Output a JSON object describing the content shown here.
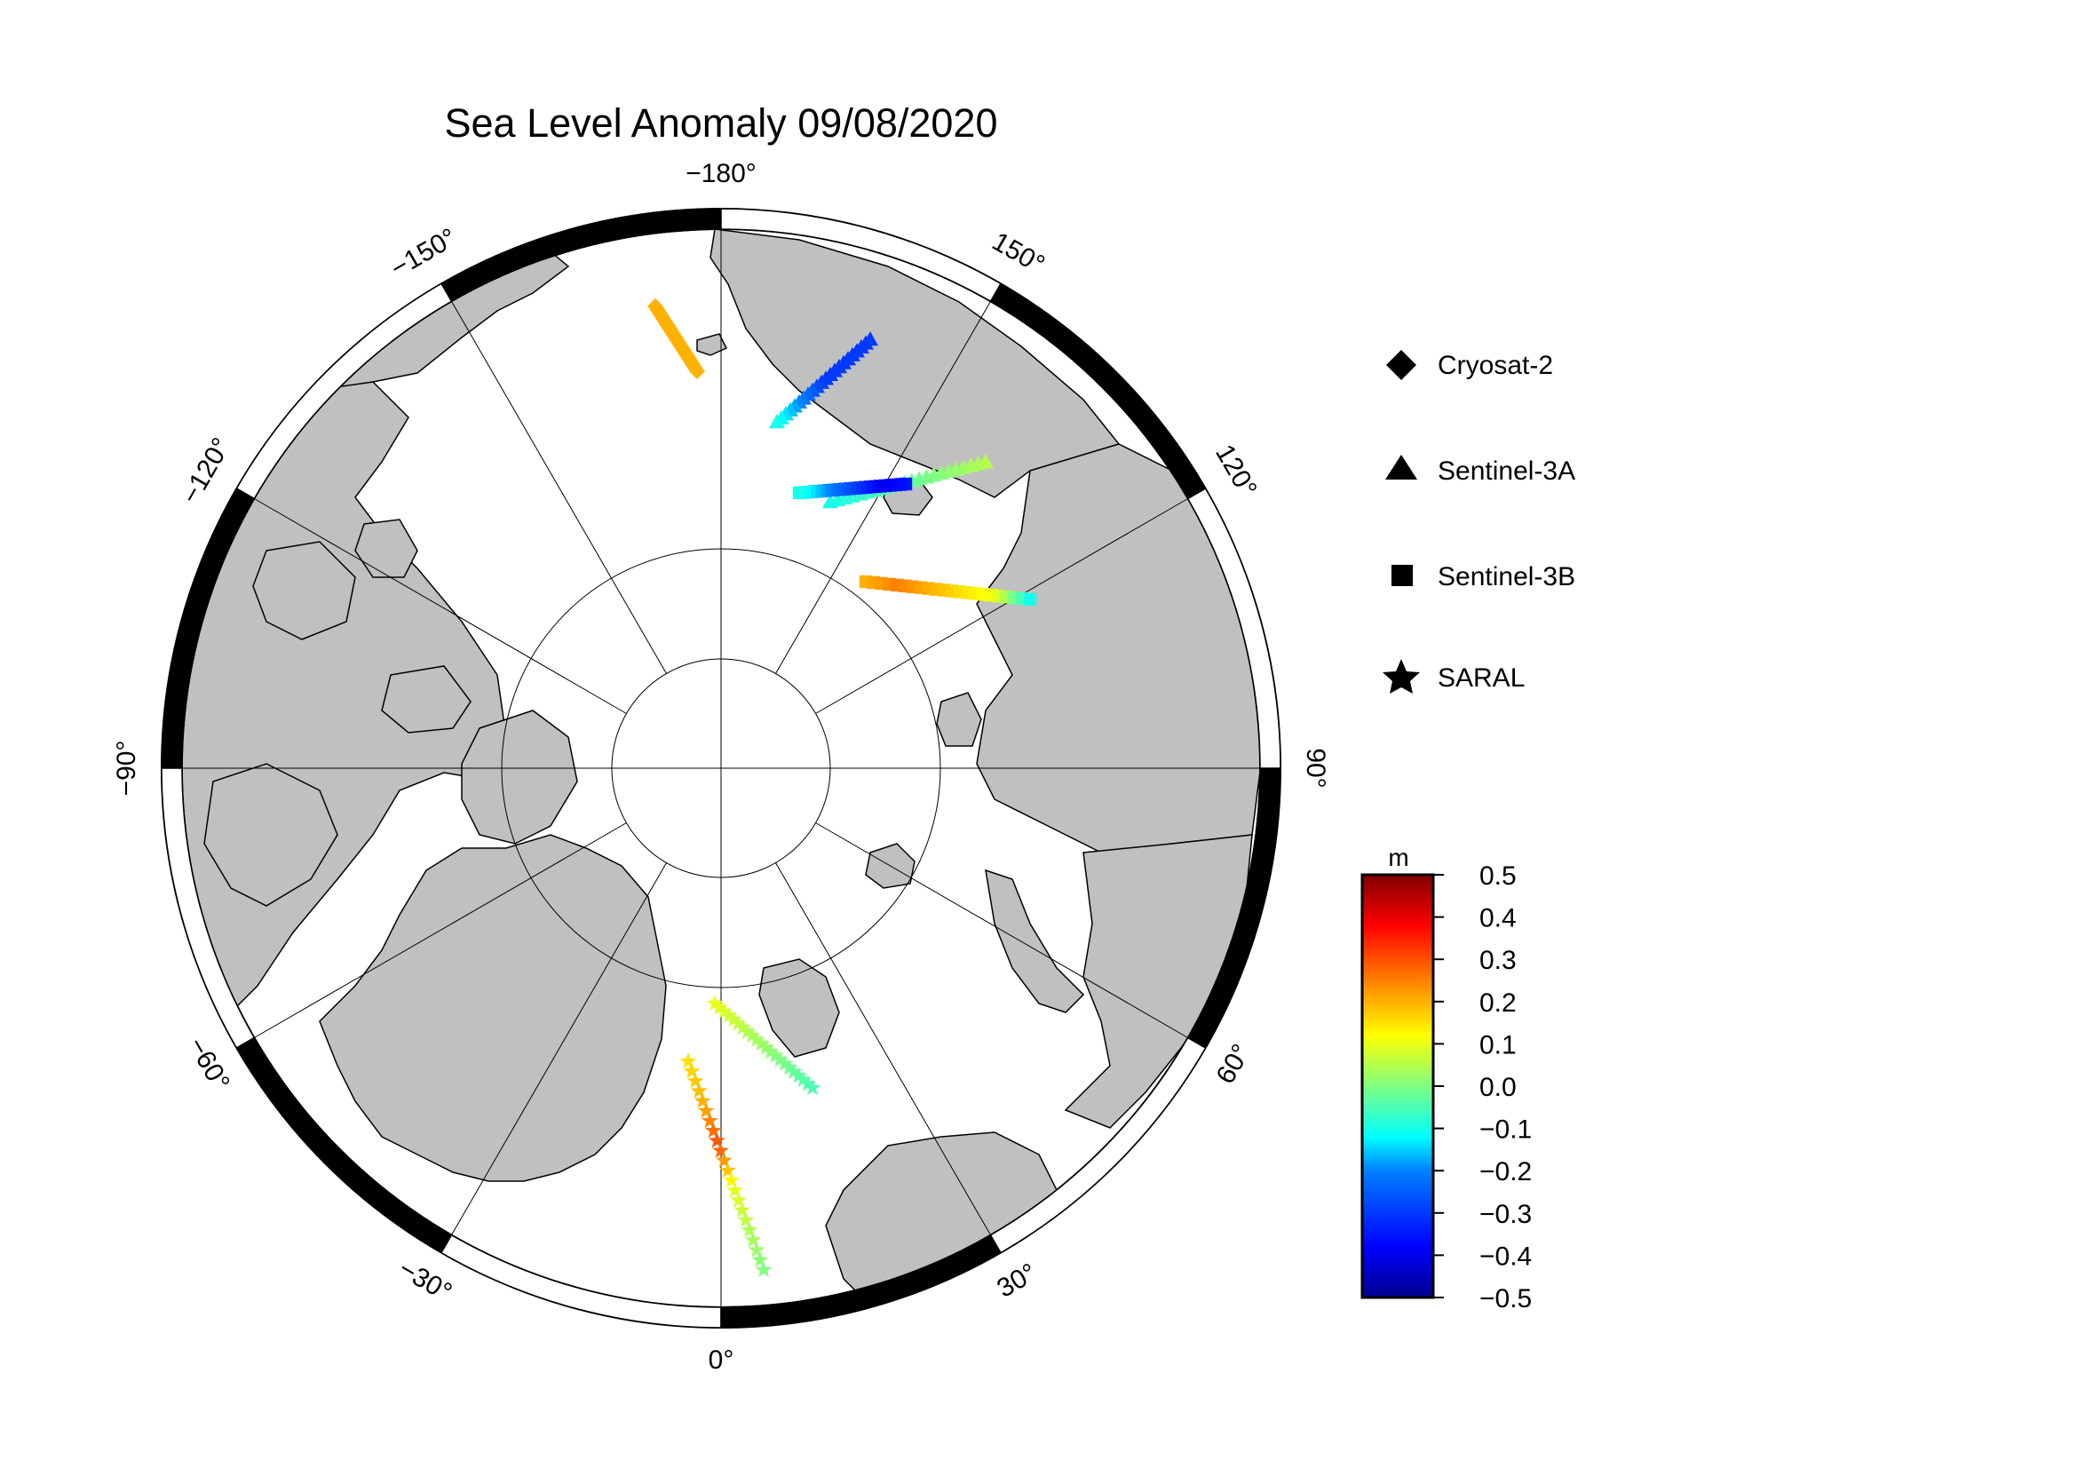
{
  "title": "Sea Level Anomaly 09/08/2020",
  "map": {
    "projection": "north polar stereographic",
    "land_color": "#c0c0c0",
    "ocean_color": "#ffffff",
    "longitude_labels": [
      {
        "lon": 180,
        "text": "−180°"
      },
      {
        "lon": 150,
        "text": "150°"
      },
      {
        "lon": 120,
        "text": "120°"
      },
      {
        "lon": 90,
        "text": "90°"
      },
      {
        "lon": 60,
        "text": "60°"
      },
      {
        "lon": 30,
        "text": "30°"
      },
      {
        "lon": 0,
        "text": "0°"
      },
      {
        "lon": -30,
        "text": "−30°"
      },
      {
        "lon": -60,
        "text": "−60°"
      },
      {
        "lon": -90,
        "text": "−90°"
      },
      {
        "lon": -120,
        "text": "−120°"
      },
      {
        "lon": -150,
        "text": "−150°"
      }
    ]
  },
  "legend": {
    "items": [
      {
        "label": "Cryosat-2",
        "marker": "diamond"
      },
      {
        "label": "Sentinel-3A",
        "marker": "triangle"
      },
      {
        "label": "Sentinel-3B",
        "marker": "square"
      },
      {
        "label": "SARAL",
        "marker": "star"
      }
    ]
  },
  "colorbar": {
    "unit": "m",
    "ticks": [
      "0.5",
      "0.4",
      "0.3",
      "0.2",
      "0.1",
      "0.0",
      "−0.1",
      "−0.2",
      "−0.3",
      "−0.4",
      "−0.5"
    ],
    "range": [
      -0.5,
      0.5
    ],
    "colormap": [
      "#00008f",
      "#0000ff",
      "#0080ff",
      "#00ffff",
      "#80ff80",
      "#ffff00",
      "#ff8000",
      "#ff0000",
      "#800000"
    ]
  },
  "chart_data": {
    "type": "scatter",
    "title": "Sea Level Anomaly 09/08/2020",
    "value_unit": "m",
    "value_range": [
      -0.5,
      0.5
    ],
    "tracks": [
      {
        "satellite": "Cryosat-2",
        "marker": "diamond",
        "values": [
          0.2,
          0.2
        ]
      },
      {
        "satellite": "Sentinel-3A",
        "marker": "triangle",
        "values": [
          -0.3,
          -0.3,
          -0.3,
          -0.2,
          -0.1
        ]
      },
      {
        "satellite": "Sentinel-3A",
        "marker": "triangle",
        "values": [
          0.05,
          0.0,
          -0.05,
          -0.1
        ]
      },
      {
        "satellite": "Sentinel-3B",
        "marker": "square",
        "values": [
          -0.35,
          -0.4,
          -0.3,
          -0.2,
          -0.1
        ]
      },
      {
        "satellite": "Sentinel-3B",
        "marker": "square",
        "values": [
          0.2,
          0.25,
          0.2,
          0.15,
          0.1,
          -0.1
        ]
      },
      {
        "satellite": "SARAL",
        "marker": "star",
        "values": [
          0.1,
          0.05,
          0.0,
          -0.05
        ]
      },
      {
        "satellite": "SARAL",
        "marker": "star",
        "values": [
          0.15,
          0.2,
          0.3,
          0.1,
          0.05,
          0.0
        ]
      }
    ]
  }
}
